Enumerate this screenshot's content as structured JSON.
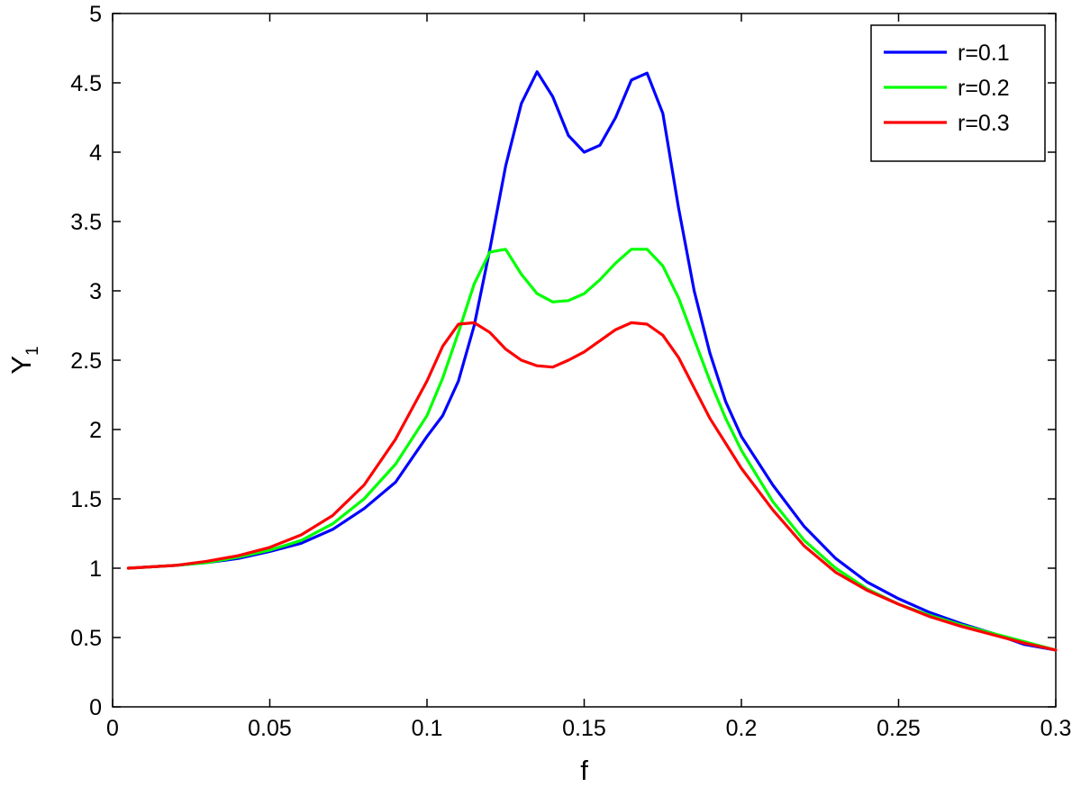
{
  "chart_data": {
    "type": "line",
    "title": "",
    "xlabel": "f",
    "ylabel": "Y",
    "ylabel_subscript": "1",
    "xlim": [
      0,
      0.3
    ],
    "ylim": [
      0,
      5
    ],
    "grid": false,
    "legend_position": "top-right",
    "x_ticks": [
      0,
      0.05,
      0.1,
      0.15,
      0.2,
      0.25,
      0.3
    ],
    "x_tick_labels": [
      "0",
      "0.05",
      "0.1",
      "0.15",
      "0.2",
      "0.25",
      "0.3"
    ],
    "y_ticks": [
      0,
      0.5,
      1,
      1.5,
      2,
      2.5,
      3,
      3.5,
      4,
      4.5,
      5
    ],
    "y_tick_labels": [
      "0",
      "0.5",
      "1",
      "1.5",
      "2",
      "2.5",
      "3",
      "3.5",
      "4",
      "4.5",
      "5"
    ],
    "series": [
      {
        "name": "r=0.1",
        "color": "#0000ff",
        "x": [
          0.005,
          0.02,
          0.03,
          0.04,
          0.05,
          0.06,
          0.07,
          0.08,
          0.09,
          0.1,
          0.105,
          0.11,
          0.115,
          0.12,
          0.125,
          0.13,
          0.135,
          0.14,
          0.145,
          0.15,
          0.155,
          0.16,
          0.165,
          0.17,
          0.175,
          0.18,
          0.185,
          0.19,
          0.195,
          0.2,
          0.21,
          0.22,
          0.23,
          0.24,
          0.25,
          0.26,
          0.27,
          0.28,
          0.29,
          0.3
        ],
        "y": [
          1.0,
          1.02,
          1.04,
          1.07,
          1.12,
          1.18,
          1.28,
          1.43,
          1.62,
          1.95,
          2.1,
          2.35,
          2.75,
          3.3,
          3.9,
          4.35,
          4.58,
          4.4,
          4.12,
          4.0,
          4.05,
          4.25,
          4.52,
          4.57,
          4.28,
          3.6,
          3.0,
          2.55,
          2.2,
          1.95,
          1.6,
          1.3,
          1.07,
          0.9,
          0.78,
          0.68,
          0.6,
          0.53,
          0.45,
          0.41
        ]
      },
      {
        "name": "r=0.2",
        "color": "#00ff00",
        "x": [
          0.005,
          0.02,
          0.03,
          0.04,
          0.05,
          0.06,
          0.07,
          0.08,
          0.09,
          0.1,
          0.105,
          0.11,
          0.115,
          0.12,
          0.125,
          0.13,
          0.135,
          0.14,
          0.145,
          0.15,
          0.155,
          0.16,
          0.165,
          0.17,
          0.175,
          0.18,
          0.185,
          0.19,
          0.195,
          0.2,
          0.21,
          0.22,
          0.23,
          0.24,
          0.25,
          0.26,
          0.27,
          0.28,
          0.29,
          0.3
        ],
        "y": [
          1.0,
          1.02,
          1.04,
          1.08,
          1.13,
          1.2,
          1.32,
          1.5,
          1.75,
          2.1,
          2.37,
          2.7,
          3.05,
          3.28,
          3.3,
          3.12,
          2.98,
          2.92,
          2.93,
          2.98,
          3.08,
          3.2,
          3.3,
          3.3,
          3.18,
          2.95,
          2.65,
          2.35,
          2.08,
          1.85,
          1.48,
          1.2,
          1.0,
          0.85,
          0.74,
          0.66,
          0.59,
          0.53,
          0.47,
          0.41
        ]
      },
      {
        "name": "r=0.3",
        "color": "#ff0000",
        "x": [
          0.005,
          0.02,
          0.03,
          0.04,
          0.05,
          0.06,
          0.07,
          0.08,
          0.09,
          0.1,
          0.105,
          0.11,
          0.115,
          0.12,
          0.125,
          0.13,
          0.135,
          0.14,
          0.145,
          0.15,
          0.155,
          0.16,
          0.165,
          0.17,
          0.175,
          0.18,
          0.185,
          0.19,
          0.195,
          0.2,
          0.21,
          0.22,
          0.23,
          0.24,
          0.25,
          0.26,
          0.27,
          0.28,
          0.29,
          0.3
        ],
        "y": [
          1.0,
          1.02,
          1.05,
          1.09,
          1.15,
          1.24,
          1.38,
          1.6,
          1.93,
          2.35,
          2.6,
          2.76,
          2.77,
          2.7,
          2.58,
          2.5,
          2.46,
          2.45,
          2.5,
          2.56,
          2.64,
          2.72,
          2.77,
          2.76,
          2.68,
          2.52,
          2.3,
          2.08,
          1.9,
          1.72,
          1.42,
          1.16,
          0.97,
          0.84,
          0.74,
          0.65,
          0.58,
          0.52,
          0.46,
          0.41
        ]
      }
    ]
  }
}
